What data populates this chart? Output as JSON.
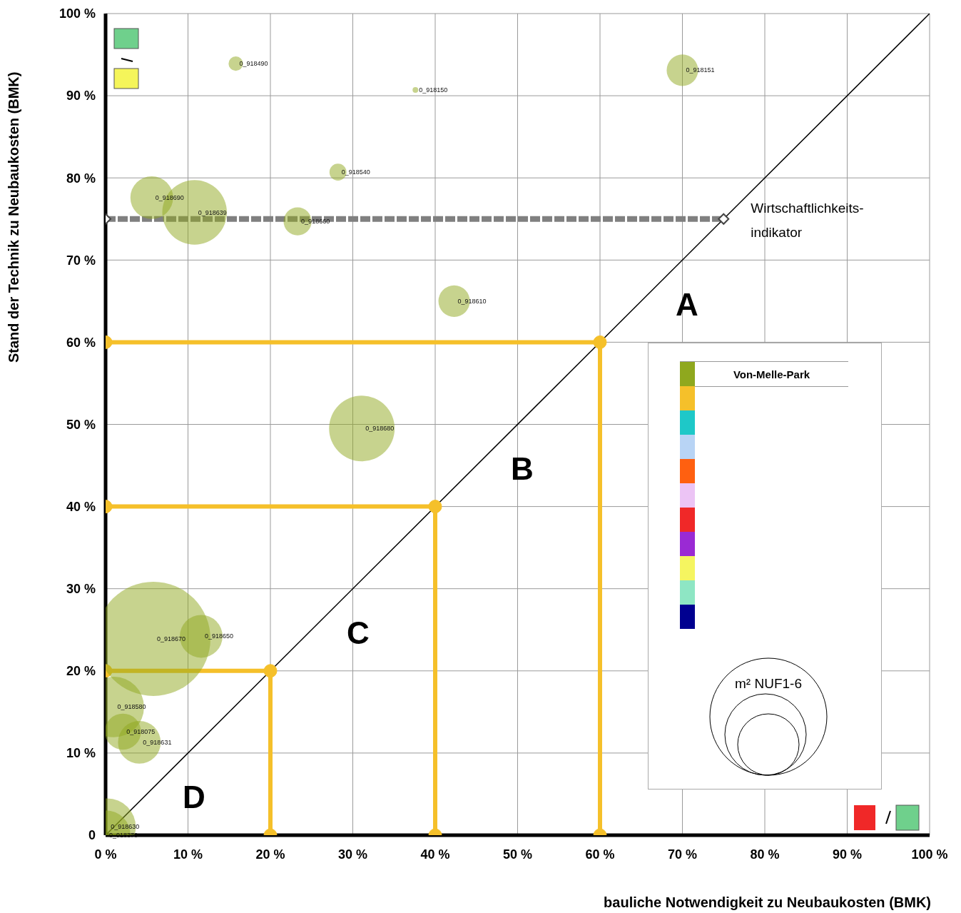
{
  "chart_data": {
    "type": "bubble",
    "xlabel": "bauliche Notwendigkeit zu Neubaukosten (BMK)",
    "ylabel": "Stand der Technik zu Neubaukosten (BMK)",
    "xlim": [
      0,
      100
    ],
    "ylim": [
      0,
      100
    ],
    "xticks": [
      {
        "value": 0,
        "label": "0 %"
      },
      {
        "value": 10,
        "label": "10 %"
      },
      {
        "value": 20,
        "label": "20 %"
      },
      {
        "value": 30,
        "label": "30 %"
      },
      {
        "value": 40,
        "label": "40 %"
      },
      {
        "value": 50,
        "label": "50 %"
      },
      {
        "value": 60,
        "label": "60 %"
      },
      {
        "value": 70,
        "label": "70 %"
      },
      {
        "value": 80,
        "label": "80 %"
      },
      {
        "value": 90,
        "label": "90 %"
      },
      {
        "value": 100,
        "label": "100 %"
      }
    ],
    "yticks": [
      {
        "value": 0,
        "label": "0"
      },
      {
        "value": 10,
        "label": "10 %"
      },
      {
        "value": 20,
        "label": "20 %"
      },
      {
        "value": 30,
        "label": "30 %"
      },
      {
        "value": 40,
        "label": "40 %"
      },
      {
        "value": 50,
        "label": "50 %"
      },
      {
        "value": 60,
        "label": "60 %"
      },
      {
        "value": 70,
        "label": "70 %"
      },
      {
        "value": 80,
        "label": "80 %"
      },
      {
        "value": 90,
        "label": "90 %"
      },
      {
        "value": 100,
        "label": "100 %"
      }
    ],
    "grid": true,
    "legend": "right",
    "series": [
      {
        "type": "line",
        "color": "#f5c02a",
        "x": [
          0,
          60,
          60
        ],
        "values": [
          60,
          60,
          0
        ],
        "marker": "circle"
      },
      {
        "type": "line",
        "color": "#f5c02a",
        "x": [
          0,
          40,
          40
        ],
        "values": [
          40,
          40,
          0
        ],
        "marker": "circle"
      },
      {
        "type": "line",
        "color": "#f5c02a",
        "x": [
          0,
          20,
          20
        ],
        "values": [
          20,
          20,
          0
        ],
        "marker": "circle"
      },
      {
        "type": "line",
        "name": "Wirtschaftlichkeits-indikator",
        "color": "#808080",
        "x": [
          0,
          75
        ],
        "values": [
          75,
          75
        ],
        "marker": "diamond",
        "line_style": "dashed"
      },
      {
        "name": "Von-Melle-Park",
        "color": "#8fa81e",
        "x": [
          15.8,
          37.6,
          70,
          28.2,
          5.6,
          10.8,
          23.3,
          42.3,
          31.1,
          5.8,
          11.6,
          1,
          2.1,
          4.1,
          0.2,
          0
        ],
        "values": [
          93.9,
          90.7,
          93.1,
          80.7,
          77.6,
          75.8,
          74.7,
          65,
          49.5,
          23.9,
          24.2,
          15.6,
          12.6,
          11.3,
          1,
          0
        ],
        "sizes": [
          0.016,
          0.0025,
          0.076,
          0.022,
          0.14,
          0.32,
          0.06,
          0.076,
          0.33,
          1,
          0.14,
          0.28,
          0.1,
          0.14,
          0.25,
          0.19
        ],
        "value_labels": [
          "0_918490",
          "0_918150",
          "0_918151",
          "0_918540",
          "0_918690",
          "0_918639",
          "0_918660",
          "0_918610",
          "0_918680",
          "0_918670",
          "0_918650",
          "0_918580",
          "0_918075",
          "0_918631",
          "0_918630",
          "0_918370"
        ]
      },
      {
        "type": "line",
        "color": "#000000",
        "x": [
          0,
          100
        ],
        "values": [
          0,
          100
        ],
        "marker": "none"
      }
    ],
    "annotations": [
      "A",
      "B",
      "C",
      "D",
      "m² NUF1-6"
    ]
  }
}
